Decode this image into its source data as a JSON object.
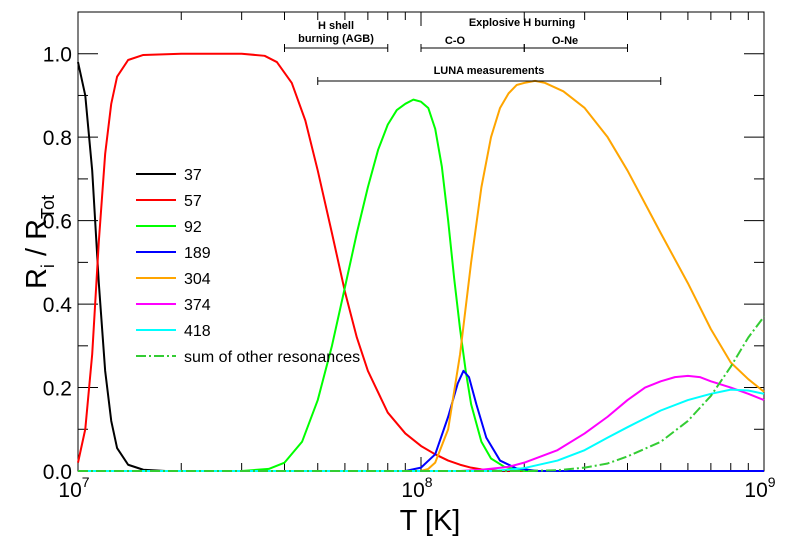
{
  "chart_data": {
    "type": "line",
    "title": "",
    "xlabel": "T [K]",
    "ylabel": "Ri / RTot",
    "xscale": "log",
    "xlim": [
      10000000.0,
      1000000000.0
    ],
    "ylim": [
      0,
      1.1
    ],
    "yticks": [
      "0.0",
      "0.2",
      "0.4",
      "0.6",
      "0.8",
      "1.0"
    ],
    "xticks": [
      {
        "base": "10",
        "exp": "7"
      },
      {
        "base": "10",
        "exp": "8"
      },
      {
        "base": "10",
        "exp": "9"
      }
    ],
    "legend_position": "center-left",
    "series": [
      {
        "name": "37",
        "color": "#000000",
        "dash": "solid",
        "points": [
          [
            10000000.0,
            0.98
          ],
          [
            10500000.0,
            0.9
          ],
          [
            11000000.0,
            0.72
          ],
          [
            11500000.0,
            0.45
          ],
          [
            12000000.0,
            0.24
          ],
          [
            12500000.0,
            0.12
          ],
          [
            13000000.0,
            0.055
          ],
          [
            14000000.0,
            0.015
          ],
          [
            15500000.0,
            0.003
          ],
          [
            18000000.0,
            0.0
          ],
          [
            1000000000.0,
            0.0
          ]
        ]
      },
      {
        "name": "57",
        "color": "#ff0000",
        "dash": "solid",
        "points": [
          [
            10000000.0,
            0.02
          ],
          [
            10500000.0,
            0.1
          ],
          [
            11000000.0,
            0.28
          ],
          [
            11500000.0,
            0.55
          ],
          [
            12000000.0,
            0.76
          ],
          [
            12500000.0,
            0.88
          ],
          [
            13000000.0,
            0.945
          ],
          [
            14000000.0,
            0.985
          ],
          [
            15500000.0,
            0.997
          ],
          [
            20000000.0,
            1.0
          ],
          [
            30000000.0,
            1.0
          ],
          [
            35000000.0,
            0.995
          ],
          [
            38000000.0,
            0.98
          ],
          [
            42000000.0,
            0.93
          ],
          [
            46000000.0,
            0.84
          ],
          [
            50000000.0,
            0.72
          ],
          [
            55000000.0,
            0.57
          ],
          [
            60000000.0,
            0.43
          ],
          [
            65000000.0,
            0.32
          ],
          [
            70000000.0,
            0.24
          ],
          [
            80000000.0,
            0.14
          ],
          [
            90000000.0,
            0.09
          ],
          [
            100000000.0,
            0.06
          ],
          [
            110000000.0,
            0.04
          ],
          [
            120000000.0,
            0.025
          ],
          [
            130000000.0,
            0.015
          ],
          [
            140000000.0,
            0.008
          ],
          [
            150000000.0,
            0.004
          ],
          [
            170000000.0,
            0.001
          ],
          [
            200000000.0,
            0.0
          ],
          [
            1000000000.0,
            0.0
          ]
        ]
      },
      {
        "name": "92",
        "color": "#00ff00",
        "dash": "solid",
        "points": [
          [
            10000000.0,
            0.0
          ],
          [
            30000000.0,
            0.0
          ],
          [
            36000000.0,
            0.005
          ],
          [
            40000000.0,
            0.02
          ],
          [
            45000000.0,
            0.07
          ],
          [
            50000000.0,
            0.17
          ],
          [
            55000000.0,
            0.3
          ],
          [
            60000000.0,
            0.44
          ],
          [
            65000000.0,
            0.57
          ],
          [
            70000000.0,
            0.68
          ],
          [
            75000000.0,
            0.77
          ],
          [
            80000000.0,
            0.83
          ],
          [
            85000000.0,
            0.865
          ],
          [
            90000000.0,
            0.88
          ],
          [
            95000000.0,
            0.89
          ],
          [
            100000000.0,
            0.885
          ],
          [
            105000000.0,
            0.87
          ],
          [
            110000000.0,
            0.82
          ],
          [
            115000000.0,
            0.73
          ],
          [
            120000000.0,
            0.6
          ],
          [
            125000000.0,
            0.46
          ],
          [
            130000000.0,
            0.34
          ],
          [
            135000000.0,
            0.24
          ],
          [
            140000000.0,
            0.16
          ],
          [
            150000000.0,
            0.07
          ],
          [
            160000000.0,
            0.03
          ],
          [
            175000000.0,
            0.01
          ],
          [
            200000000.0,
            0.0
          ],
          [
            1000000000.0,
            0.0
          ]
        ]
      },
      {
        "name": "189",
        "color": "#0000ff",
        "dash": "solid",
        "points": [
          [
            10000000.0,
            0.0
          ],
          [
            90000000.0,
            0.0
          ],
          [
            100000000.0,
            0.008
          ],
          [
            110000000.0,
            0.04
          ],
          [
            120000000.0,
            0.13
          ],
          [
            128000000.0,
            0.21
          ],
          [
            133000000.0,
            0.24
          ],
          [
            138000000.0,
            0.225
          ],
          [
            145000000.0,
            0.16
          ],
          [
            155000000.0,
            0.08
          ],
          [
            170000000.0,
            0.025
          ],
          [
            190000000.0,
            0.006
          ],
          [
            220000000.0,
            0.0
          ],
          [
            1000000000.0,
            0.0
          ]
        ]
      },
      {
        "name": "304",
        "color": "#ffa500",
        "dash": "solid",
        "points": [
          [
            10000000.0,
            0.0
          ],
          [
            100000000.0,
            0.0
          ],
          [
            105000000.0,
            0.005
          ],
          [
            110000000.0,
            0.02
          ],
          [
            120000000.0,
            0.1
          ],
          [
            130000000.0,
            0.28
          ],
          [
            140000000.0,
            0.5
          ],
          [
            150000000.0,
            0.68
          ],
          [
            160000000.0,
            0.8
          ],
          [
            170000000.0,
            0.87
          ],
          [
            180000000.0,
            0.905
          ],
          [
            190000000.0,
            0.925
          ],
          [
            200000000.0,
            0.93
          ],
          [
            215000000.0,
            0.935
          ],
          [
            230000000.0,
            0.93
          ],
          [
            260000000.0,
            0.91
          ],
          [
            300000000.0,
            0.87
          ],
          [
            350000000.0,
            0.8
          ],
          [
            400000000.0,
            0.72
          ],
          [
            500000000.0,
            0.57
          ],
          [
            600000000.0,
            0.45
          ],
          [
            700000000.0,
            0.34
          ],
          [
            800000000.0,
            0.26
          ],
          [
            900000000.0,
            0.22
          ],
          [
            1000000000.0,
            0.19
          ]
        ]
      },
      {
        "name": "374",
        "color": "#ff00ff",
        "dash": "solid",
        "points": [
          [
            10000000.0,
            0.0
          ],
          [
            130000000.0,
            0.0
          ],
          [
            150000000.0,
            0.003
          ],
          [
            180000000.0,
            0.01
          ],
          [
            200000000.0,
            0.02
          ],
          [
            250000000.0,
            0.05
          ],
          [
            300000000.0,
            0.09
          ],
          [
            350000000.0,
            0.13
          ],
          [
            400000000.0,
            0.17
          ],
          [
            450000000.0,
            0.2
          ],
          [
            500000000.0,
            0.215
          ],
          [
            550000000.0,
            0.225
          ],
          [
            600000000.0,
            0.228
          ],
          [
            650000000.0,
            0.225
          ],
          [
            700000000.0,
            0.215
          ],
          [
            800000000.0,
            0.2
          ],
          [
            900000000.0,
            0.185
          ],
          [
            1000000000.0,
            0.17
          ]
        ]
      },
      {
        "name": "418",
        "color": "#00ffff",
        "dash": "solid",
        "points": [
          [
            10000000.0,
            0.0
          ],
          [
            160000000.0,
            0.0
          ],
          [
            180000000.0,
            0.003
          ],
          [
            200000000.0,
            0.007
          ],
          [
            250000000.0,
            0.025
          ],
          [
            300000000.0,
            0.05
          ],
          [
            350000000.0,
            0.08
          ],
          [
            400000000.0,
            0.105
          ],
          [
            500000000.0,
            0.145
          ],
          [
            600000000.0,
            0.17
          ],
          [
            700000000.0,
            0.185
          ],
          [
            800000000.0,
            0.195
          ],
          [
            900000000.0,
            0.193
          ],
          [
            1000000000.0,
            0.185
          ]
        ]
      },
      {
        "name": "sum of other resonances",
        "color": "#33cc33",
        "dash": "dashdot",
        "points": [
          [
            10000000.0,
            0.0
          ],
          [
            200000000.0,
            0.0
          ],
          [
            250000000.0,
            0.002
          ],
          [
            300000000.0,
            0.008
          ],
          [
            350000000.0,
            0.018
          ],
          [
            400000000.0,
            0.035
          ],
          [
            500000000.0,
            0.07
          ],
          [
            600000000.0,
            0.12
          ],
          [
            700000000.0,
            0.18
          ],
          [
            800000000.0,
            0.25
          ],
          [
            900000000.0,
            0.32
          ],
          [
            1000000000.0,
            0.37
          ]
        ]
      }
    ],
    "annotations": [
      {
        "id": "h-shell",
        "lines": [
          "H shell",
          "burning (AGB)"
        ],
        "range": [
          40000000.0,
          80000000.0
        ]
      },
      {
        "id": "explosive",
        "lines": [
          "Explosive H burning"
        ],
        "range": null
      },
      {
        "id": "c-o",
        "lines": [
          "C-O"
        ],
        "range": [
          100000000.0,
          200000000.0
        ]
      },
      {
        "id": "o-ne",
        "lines": [
          "O-Ne"
        ],
        "range": [
          200000000.0,
          400000000.0
        ]
      },
      {
        "id": "luna",
        "lines": [
          "LUNA measurements"
        ],
        "range": [
          50000000.0,
          500000000.0
        ]
      }
    ]
  }
}
